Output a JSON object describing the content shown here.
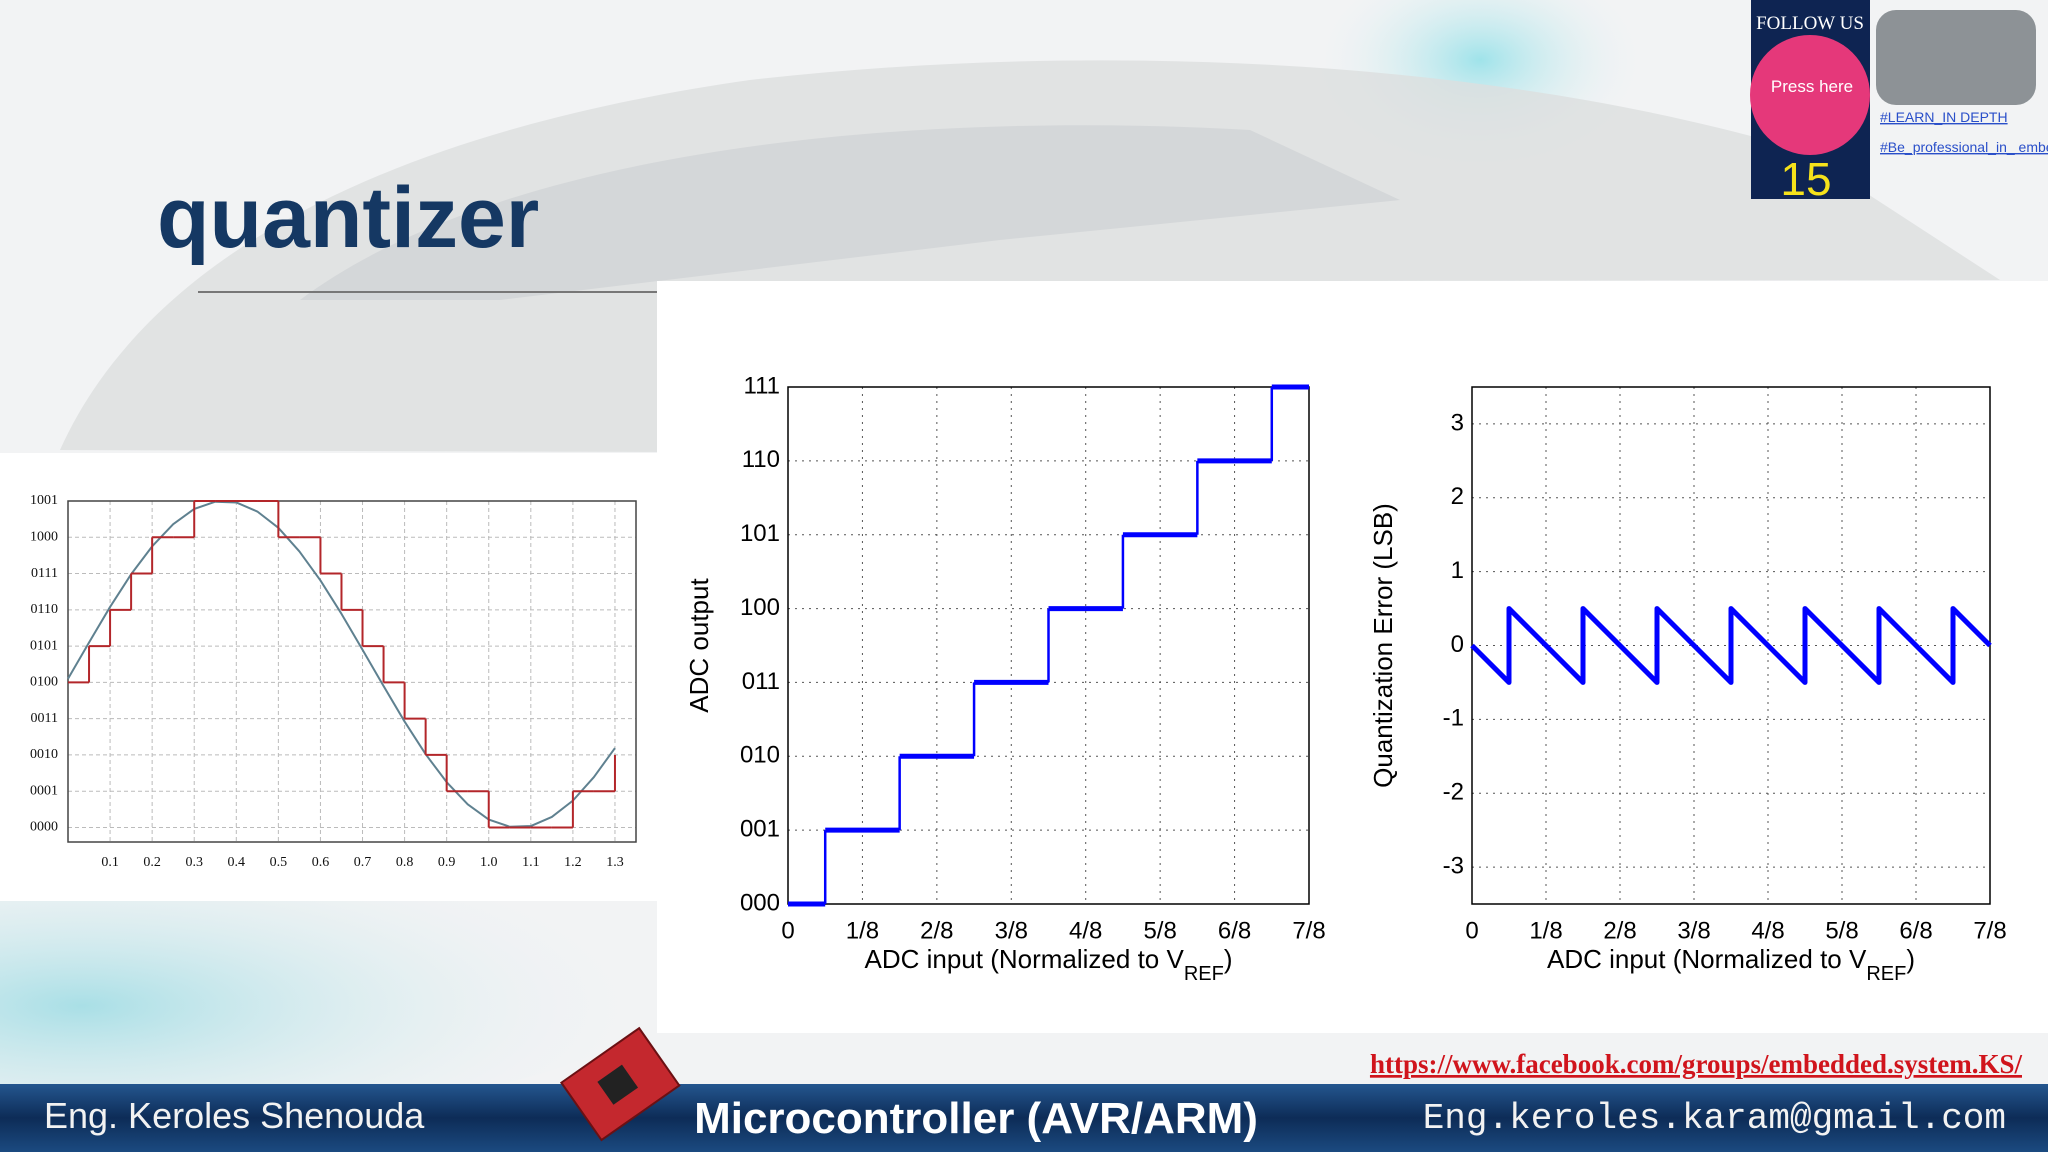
{
  "header": {
    "title": "quantizer"
  },
  "follow": {
    "heading": "FOLLOW US",
    "button": "Press here",
    "number": 15,
    "tags": [
      "#LEARN_IN DEPTH",
      "#Be_professional_in_ embedded_system"
    ]
  },
  "chart_data": [
    {
      "type": "line",
      "grid": true,
      "x": [
        0,
        0.05,
        0.1,
        0.15,
        0.2,
        0.25,
        0.3,
        0.35,
        0.4,
        0.45,
        0.5,
        0.55,
        0.6,
        0.65,
        0.7,
        0.75,
        0.8,
        0.85,
        0.9,
        0.95,
        1.0,
        1.05,
        1.1,
        1.15,
        1.2,
        1.25,
        1.3
      ],
      "series": [
        {
          "color": "#5f8190",
          "values": [
            4.1,
            5.1,
            6.08,
            6.98,
            7.75,
            8.36,
            8.78,
            8.98,
            8.96,
            8.71,
            8.26,
            7.61,
            6.81,
            5.89,
            4.9,
            3.9,
            2.92,
            2.02,
            1.25,
            0.64,
            0.22,
            0.02,
            0.04,
            0.29,
            0.74,
            1.39,
            2.19
          ]
        },
        {
          "color": "#b3262a",
          "drawstyle": "steps-post",
          "values": [
            4,
            5,
            6,
            7,
            8,
            8,
            9,
            9,
            9,
            9,
            8,
            8,
            7,
            6,
            5,
            4,
            3,
            2,
            1,
            1,
            0,
            0,
            0,
            0,
            1,
            1,
            2
          ]
        }
      ],
      "xlim": [
        0,
        1.35
      ],
      "ylim": [
        -0.4,
        9
      ],
      "xticks": [
        0.1,
        0.2,
        0.3,
        0.4,
        0.5,
        0.6,
        0.7,
        0.8,
        0.9,
        {
          "value": 1.0,
          "label": "1.0"
        },
        1.1,
        1.2,
        1.3
      ],
      "yticks": [
        {
          "value": 0,
          "label": "0000"
        },
        {
          "value": 1,
          "label": "0001"
        },
        {
          "value": 2,
          "label": "0010"
        },
        {
          "value": 3,
          "label": "0011"
        },
        {
          "value": 4,
          "label": "0100"
        },
        {
          "value": 5,
          "label": "0101"
        },
        {
          "value": 6,
          "label": "0110"
        },
        {
          "value": 7,
          "label": "0111"
        },
        {
          "value": 8,
          "label": "1000"
        },
        {
          "value": 9,
          "label": "1001"
        }
      ]
    },
    {
      "type": "line",
      "grid": true,
      "x": [
        0,
        0.0625,
        0.1875,
        0.3125,
        0.4375,
        0.5625,
        0.6875,
        0.8125
      ],
      "series": [
        {
          "color": "#0000ff",
          "drawstyle": "steps-post",
          "values": [
            0,
            1,
            2,
            3,
            4,
            5,
            6,
            7
          ]
        }
      ],
      "xlim": [
        0,
        0.875
      ],
      "ylim": [
        0,
        7
      ],
      "xticks": [
        0,
        {
          "value": 0.125,
          "label": "1/8"
        },
        {
          "value": 0.25,
          "label": "2/8"
        },
        {
          "value": 0.375,
          "label": "3/8"
        },
        {
          "value": 0.5,
          "label": "4/8"
        },
        {
          "value": 0.625,
          "label": "5/8"
        },
        {
          "value": 0.75,
          "label": "6/8"
        },
        {
          "value": 0.875,
          "label": "7/8"
        }
      ],
      "yticks": [
        {
          "value": 0,
          "label": "000"
        },
        {
          "value": 1,
          "label": "001"
        },
        {
          "value": 2,
          "label": "010"
        },
        {
          "value": 3,
          "label": "011"
        },
        {
          "value": 4,
          "label": "100"
        },
        {
          "value": 5,
          "label": "101"
        },
        {
          "value": 6,
          "label": "110"
        },
        {
          "value": 7,
          "label": "111"
        }
      ],
      "xlabel": [
        "ADC input (Normalized to V",
        "REF",
        ")"
      ],
      "ylabel": "ADC output"
    },
    {
      "type": "line",
      "grid": true,
      "x": [
        0,
        0.0625,
        0.0625,
        0.1875,
        0.1875,
        0.3125,
        0.3125,
        0.4375,
        0.4375,
        0.5625,
        0.5625,
        0.6875,
        0.6875,
        0.8125,
        0.8125,
        0.875
      ],
      "series": [
        {
          "color": "#0000ff",
          "values": [
            0,
            -0.5,
            0.5,
            -0.5,
            0.5,
            -0.5,
            0.5,
            -0.5,
            0.5,
            -0.5,
            0.5,
            -0.5,
            0.5,
            -0.5,
            0.5,
            0
          ]
        }
      ],
      "xlim": [
        0,
        0.875
      ],
      "ylim": [
        -3.5,
        3.5
      ],
      "xticks": [
        0,
        {
          "value": 0.125,
          "label": "1/8"
        },
        {
          "value": 0.25,
          "label": "2/8"
        },
        {
          "value": 0.375,
          "label": "3/8"
        },
        {
          "value": 0.5,
          "label": "4/8"
        },
        {
          "value": 0.625,
          "label": "5/8"
        },
        {
          "value": 0.75,
          "label": "6/8"
        },
        {
          "value": 0.875,
          "label": "7/8"
        }
      ],
      "yticks": [
        -3,
        -2,
        -1,
        0,
        1,
        2,
        3
      ],
      "xlabel": [
        "ADC input (Normalized to V",
        "REF",
        ")"
      ],
      "ylabel": "Quantization Error (LSB)"
    }
  ],
  "footer": {
    "url": "https://www.facebook.com/groups/embedded.system.KS/",
    "author": "Eng. Keroles Shenouda",
    "course": "Microcontroller (AVR/ARM)",
    "email": "Eng.keroles.karam@gmail.com"
  }
}
